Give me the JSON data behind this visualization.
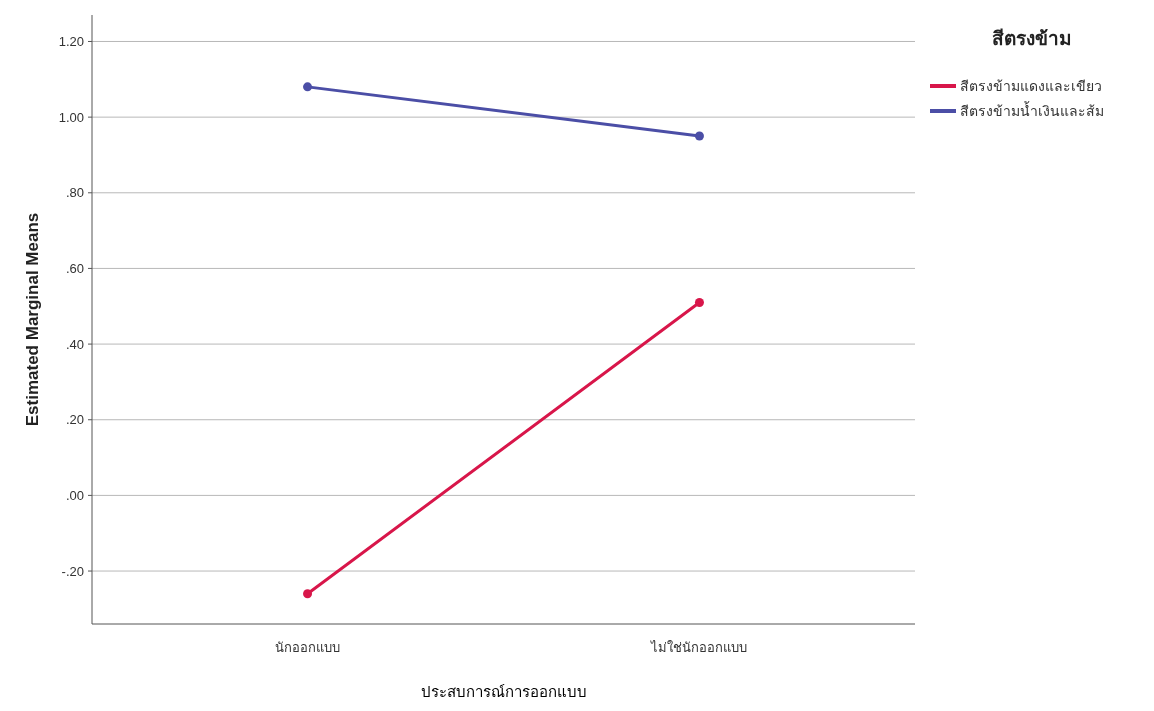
{
  "chart_data": {
    "type": "line",
    "xlabel": "ประสบการณ์การออกแบบ",
    "ylabel": "Estimated Marginal Means",
    "legend_title": "สีตรงข้าม",
    "categories": [
      "นักออกแบบ",
      "ไม่ใช่นักออกแบบ"
    ],
    "series": [
      {
        "name": "สีตรงข้ามแดงและเขียว",
        "color": "#d8164a",
        "values": [
          -0.26,
          0.51
        ]
      },
      {
        "name": "สีตรงข้ามน้ำเงินและส้ม",
        "color": "#4b4ea6",
        "values": [
          1.08,
          0.95
        ]
      }
    ],
    "ylim": [
      -0.34,
      1.27
    ],
    "yticks": [
      {
        "value": -0.2,
        "label": "-.20"
      },
      {
        "value": 0,
        "label": ".00"
      },
      {
        "value": 0.2,
        "label": ".20"
      },
      {
        "value": 0.4,
        "label": ".40"
      },
      {
        "value": 0.6,
        "label": ".60"
      },
      {
        "value": 0.8,
        "label": ".80"
      },
      {
        "value": 1,
        "label": "1.00"
      },
      {
        "value": 1.2,
        "label": "1.20"
      }
    ],
    "grid": "y",
    "legend": "top right",
    "marker": "circle",
    "line_style": "solid"
  }
}
